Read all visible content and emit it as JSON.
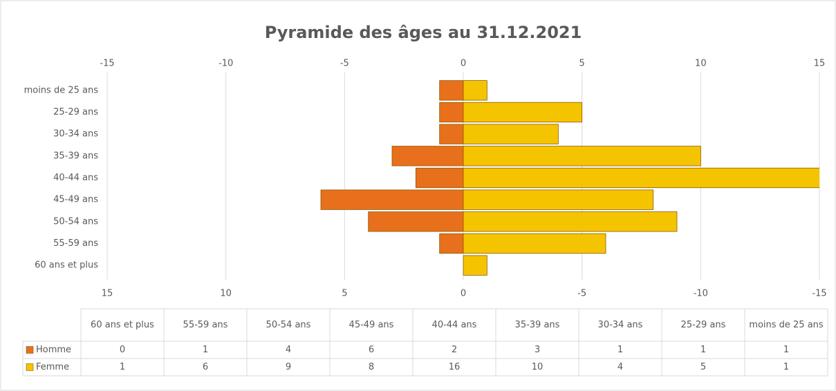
{
  "chart_data": {
    "type": "bar",
    "orientation": "horizontal",
    "title": "Pyramide des âges au 31.12.2021",
    "categories": [
      "60 ans et plus",
      "55-59 ans",
      "50-54 ans",
      "45-49 ans",
      "40-44 ans",
      "35-39 ans",
      "30-34 ans",
      "25-29 ans",
      "moins de 25 ans"
    ],
    "series": [
      {
        "name": "Homme",
        "color": "#e8701c",
        "axis": "x2",
        "values": [
          0,
          1,
          4,
          6,
          2,
          3,
          1,
          1,
          1
        ]
      },
      {
        "name": "Femme",
        "color": "#f5c400",
        "values": [
          1,
          6,
          9,
          8,
          16,
          10,
          4,
          5,
          1
        ]
      }
    ],
    "xlim": [
      -15,
      15
    ],
    "xticks": [
      -15,
      -10,
      -5,
      0,
      5,
      10,
      15
    ],
    "x2lim": [
      15,
      -15
    ],
    "x2ticks": [
      15,
      10,
      5,
      0,
      -5,
      -10,
      -15
    ],
    "grid": true,
    "data_table": true
  }
}
